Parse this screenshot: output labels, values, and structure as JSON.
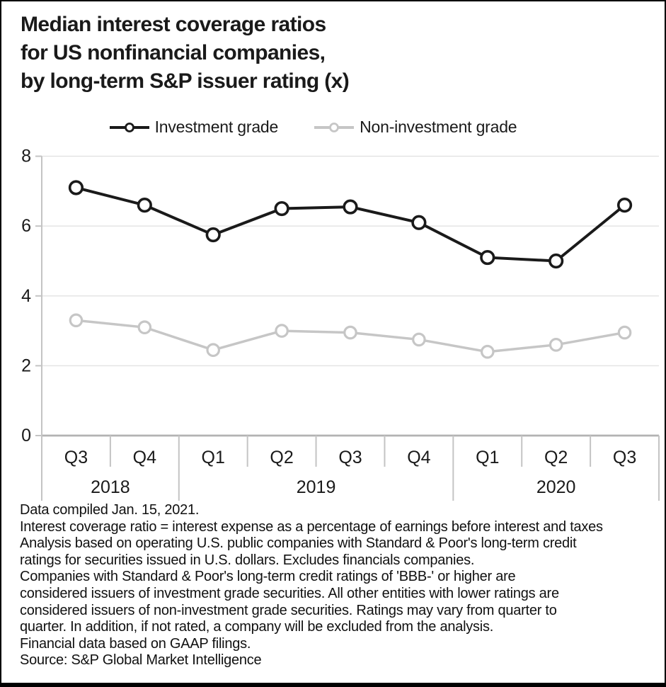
{
  "title": {
    "lines": [
      "Median interest coverage ratios",
      "for US nonfinancial companies,",
      "by long-term S&P issuer rating (x)"
    ]
  },
  "legend": {
    "items": [
      {
        "label": "Investment grade",
        "color": "#1a1a1a"
      },
      {
        "label": "Non-investment grade",
        "color": "#c6c6c6"
      }
    ]
  },
  "chart_data": {
    "type": "line",
    "title": "Median interest coverage ratios for US nonfinancial companies, by long-term S&P issuer rating (x)",
    "xlabel": "",
    "ylabel": "",
    "categories": [
      "Q3",
      "Q4",
      "Q1",
      "Q2",
      "Q3",
      "Q4",
      "Q1",
      "Q2",
      "Q3"
    ],
    "year_groups": [
      {
        "label": "2018",
        "span": 2
      },
      {
        "label": "2019",
        "span": 4
      },
      {
        "label": "2020",
        "span": 3
      }
    ],
    "series": [
      {
        "name": "Investment grade",
        "id": "investment-grade",
        "color": "#1a1a1a",
        "values": [
          7.1,
          6.6,
          5.75,
          6.5,
          6.55,
          6.1,
          5.1,
          5.0,
          6.6
        ]
      },
      {
        "name": "Non-investment grade",
        "id": "non-investment-grade",
        "color": "#c6c6c6",
        "values": [
          3.3,
          3.1,
          2.45,
          3.0,
          2.95,
          2.75,
          2.4,
          2.6,
          2.95
        ]
      }
    ],
    "ylim": [
      0,
      8
    ],
    "yticks": [
      0,
      2,
      4,
      6,
      8
    ],
    "grid": "horizontal",
    "legend_position": "top-center",
    "marker": "open-circle",
    "axis_colors": {
      "gridline": "#e2e2e2",
      "axis_line": "#b3b3b3",
      "tick": "#c4c4c4",
      "text": "#1a1a1a"
    }
  },
  "footnotes": {
    "lines": [
      "Data compiled Jan. 15, 2021.",
      "Interest coverage ratio = interest expense as a percentage of earnings before interest and taxes",
      "Analysis based on operating U.S. public companies with Standard & Poor's long-term credit",
      "ratings for securities issued in U.S. dollars. Excludes financials companies.",
      "Companies with Standard & Poor's long-term credit ratings of 'BBB-' or higher are",
      "considered issuers of investment grade securities. All other entities with lower ratings are",
      "considered issuers of non-investment grade securities. Ratings may vary from quarter to",
      "quarter. In addition, if not rated, a company will be excluded from the analysis.",
      "Financial data based on GAAP filings.",
      "Source: S&P Global Market Intelligence"
    ]
  }
}
